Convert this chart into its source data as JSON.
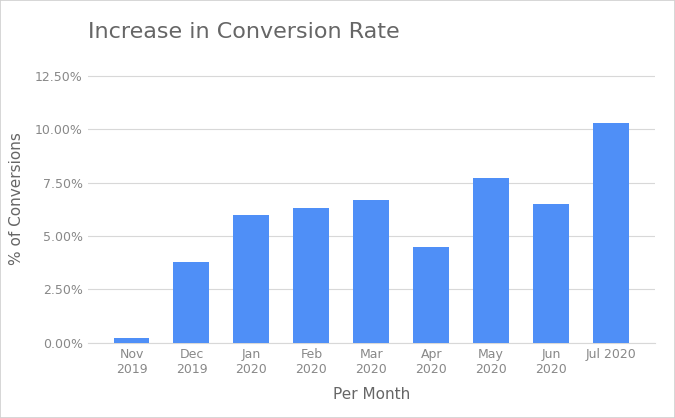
{
  "title": "Increase in Conversion Rate",
  "xlabel": "Per Month",
  "ylabel": "% of Conversions",
  "categories": [
    "Nov\n2019",
    "Dec\n2019",
    "Jan\n2020",
    "Feb\n2020",
    "Mar\n2020",
    "Apr\n2020",
    "May\n2020",
    "Jun\n2020",
    "Jul 2020"
  ],
  "values": [
    0.002,
    0.038,
    0.06,
    0.063,
    0.067,
    0.045,
    0.077,
    0.065,
    0.103
  ],
  "bar_color": "#4f8ff7",
  "ylim": [
    0,
    0.135
  ],
  "yticks": [
    0.0,
    0.025,
    0.05,
    0.075,
    0.1,
    0.125
  ],
  "ytick_labels": [
    "0.00%",
    "2.50%",
    "5.00%",
    "7.50%",
    "10.00%",
    "12.50%"
  ],
  "background_color": "#ffffff",
  "figure_border_color": "#d0d0d0",
  "grid_color": "#d8d8d8",
  "title_fontsize": 16,
  "axis_label_fontsize": 11,
  "tick_fontsize": 9,
  "title_color": "#666666",
  "axis_label_color": "#666666",
  "tick_color": "#888888"
}
